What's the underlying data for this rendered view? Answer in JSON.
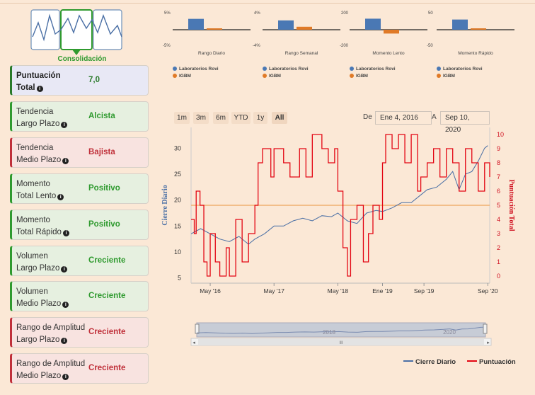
{
  "logo": {
    "label": "Consolidación"
  },
  "metrics": [
    {
      "line1": "Puntuación",
      "line2": "Total",
      "value": "7,0",
      "type": "info"
    },
    {
      "line1": "Tendencia",
      "line2": "Largo Plazo",
      "value": "Alcista",
      "type": "good"
    },
    {
      "line1": "Tendencia",
      "line2": "Medio Plazo",
      "value": "Bajista",
      "type": "bad"
    },
    {
      "line1": "Momento",
      "line2": "Total Lento",
      "value": "Positivo",
      "type": "good"
    },
    {
      "line1": "Momento",
      "line2": "Total Rápido",
      "value": "Positivo",
      "type": "good"
    },
    {
      "line1": "Volumen",
      "line2": "Largo Plazo",
      "value": "Creciente",
      "type": "good"
    },
    {
      "line1": "Volumen",
      "line2": "Medio Plazo",
      "value": "Creciente",
      "type": "good"
    },
    {
      "line1": "Rango de Amplitud",
      "line2": "Largo Plazo",
      "value": "Creciente",
      "type": "bad"
    },
    {
      "line1": "Rango de Amplitud",
      "line2": "Medio Plazo",
      "value": "Creciente",
      "type": "bad"
    }
  ],
  "range_buttons": [
    "1m",
    "3m",
    "6m",
    "YTD",
    "1y",
    "All"
  ],
  "range_active": "All",
  "date_range": {
    "from_label": "De",
    "from": "Ene 4, 2016",
    "to_label": "A",
    "to": "Sep 10, 2020"
  },
  "navigator": {
    "labels": [
      "2018",
      "2020"
    ],
    "scroll_glyph": "III"
  },
  "colors": {
    "stock": "#4a6fa5",
    "score": "#e30613",
    "bar_blue": "#4a78b4",
    "bar_orange": "#e07a27",
    "good": "#2f9a2f",
    "bad": "#c0303a"
  },
  "chart_data": [
    {
      "type": "bar",
      "title": "Rango Diario",
      "y_ticks": [
        "5%",
        "-5%"
      ],
      "ylim": [
        -5,
        5
      ],
      "series": [
        {
          "name": "Laboratorios Rovi",
          "values": [
            3.2
          ]
        },
        {
          "name": "IGBM",
          "values": [
            0.4
          ]
        }
      ]
    },
    {
      "type": "bar",
      "title": "Rango Semanal",
      "y_ticks": [
        "4%",
        "-4%"
      ],
      "ylim": [
        -4,
        4
      ],
      "series": [
        {
          "name": "Laboratorios Rovi",
          "values": [
            2.2
          ]
        },
        {
          "name": "IGBM",
          "values": [
            0.7
          ]
        }
      ]
    },
    {
      "type": "bar",
      "title": "Momento Lento",
      "y_ticks": [
        "200",
        "-200"
      ],
      "ylim": [
        -200,
        200
      ],
      "series": [
        {
          "name": "Laboratorios Rovi",
          "values": [
            130
          ]
        },
        {
          "name": "IGBM",
          "values": [
            -45
          ]
        }
      ]
    },
    {
      "type": "bar",
      "title": "Momento Rápido",
      "y_ticks": [
        "50",
        "-50"
      ],
      "ylim": [
        -50,
        50
      ],
      "series": [
        {
          "name": "Laboratorios Rovi",
          "values": [
            30
          ]
        },
        {
          "name": "IGBM",
          "values": [
            2
          ]
        }
      ]
    },
    {
      "type": "line",
      "ylabel": "Cierre Diario",
      "y2label": "Puntuación Total",
      "ylim": [
        4,
        34
      ],
      "y2lim": [
        -0.5,
        10.5
      ],
      "y_ticks": [
        5,
        10,
        15,
        20,
        25,
        30
      ],
      "y2_ticks": [
        0,
        1,
        2,
        3,
        4,
        5,
        6,
        7,
        8,
        9,
        10
      ],
      "x_ticks": [
        {
          "label": "May '16",
          "t": 0.3
        },
        {
          "label": "May '17",
          "t": 1.3
        },
        {
          "label": "May '18",
          "t": 2.3
        },
        {
          "label": "Ene '19",
          "t": 3.0
        },
        {
          "label": "Sep '19",
          "t": 3.65
        },
        {
          "label": "Sep '20",
          "t": 4.65
        }
      ],
      "xlim": [
        0,
        4.68
      ],
      "reference_line": 19,
      "series": [
        {
          "name": "Cierre Diario",
          "axis": "left",
          "x": [
            0,
            0.15,
            0.3,
            0.45,
            0.6,
            0.75,
            0.9,
            1.0,
            1.15,
            1.3,
            1.45,
            1.6,
            1.75,
            1.9,
            2.05,
            2.2,
            2.3,
            2.45,
            2.6,
            2.75,
            2.9,
            3.0,
            3.15,
            3.3,
            3.45,
            3.6,
            3.7,
            3.85,
            4.0,
            4.1,
            4.2,
            4.3,
            4.4,
            4.5,
            4.6,
            4.65
          ],
          "y": [
            13.5,
            14.5,
            13.5,
            12.5,
            12,
            13,
            11.5,
            12.5,
            13.5,
            15,
            15,
            16,
            16.5,
            16,
            17,
            16.8,
            17.5,
            16,
            15.5,
            17.5,
            18,
            17.8,
            18.5,
            19.5,
            19.5,
            21,
            22,
            22.5,
            24,
            25.5,
            22,
            25,
            25.5,
            27.5,
            30,
            30.5
          ]
        },
        {
          "name": "Puntuación",
          "axis": "right",
          "x": [
            0,
            0.05,
            0.08,
            0.14,
            0.2,
            0.25,
            0.3,
            0.38,
            0.45,
            0.55,
            0.6,
            0.7,
            0.8,
            0.9,
            1.0,
            1.05,
            1.12,
            1.25,
            1.3,
            1.45,
            1.55,
            1.7,
            1.8,
            1.9,
            2.05,
            2.15,
            2.25,
            2.3,
            2.38,
            2.45,
            2.5,
            2.6,
            2.7,
            2.78,
            2.85,
            2.95,
            3.0,
            3.05,
            3.15,
            3.25,
            3.35,
            3.45,
            3.55,
            3.6,
            3.7,
            3.8,
            3.9,
            4.0,
            4.1,
            4.2,
            4.3,
            4.4,
            4.5,
            4.6,
            4.68
          ],
          "y": [
            4,
            3,
            6,
            5,
            1,
            0,
            3,
            1,
            0,
            2,
            0,
            4,
            1,
            3,
            5,
            8,
            9,
            7,
            9,
            8,
            7,
            9,
            7,
            10,
            9,
            8,
            9,
            6,
            2,
            0,
            4,
            5,
            1,
            3,
            5,
            4,
            8,
            10,
            9,
            10,
            8,
            10,
            6,
            7,
            8,
            9,
            7,
            9,
            8,
            6,
            9,
            8,
            6,
            8,
            7
          ]
        }
      ]
    }
  ]
}
